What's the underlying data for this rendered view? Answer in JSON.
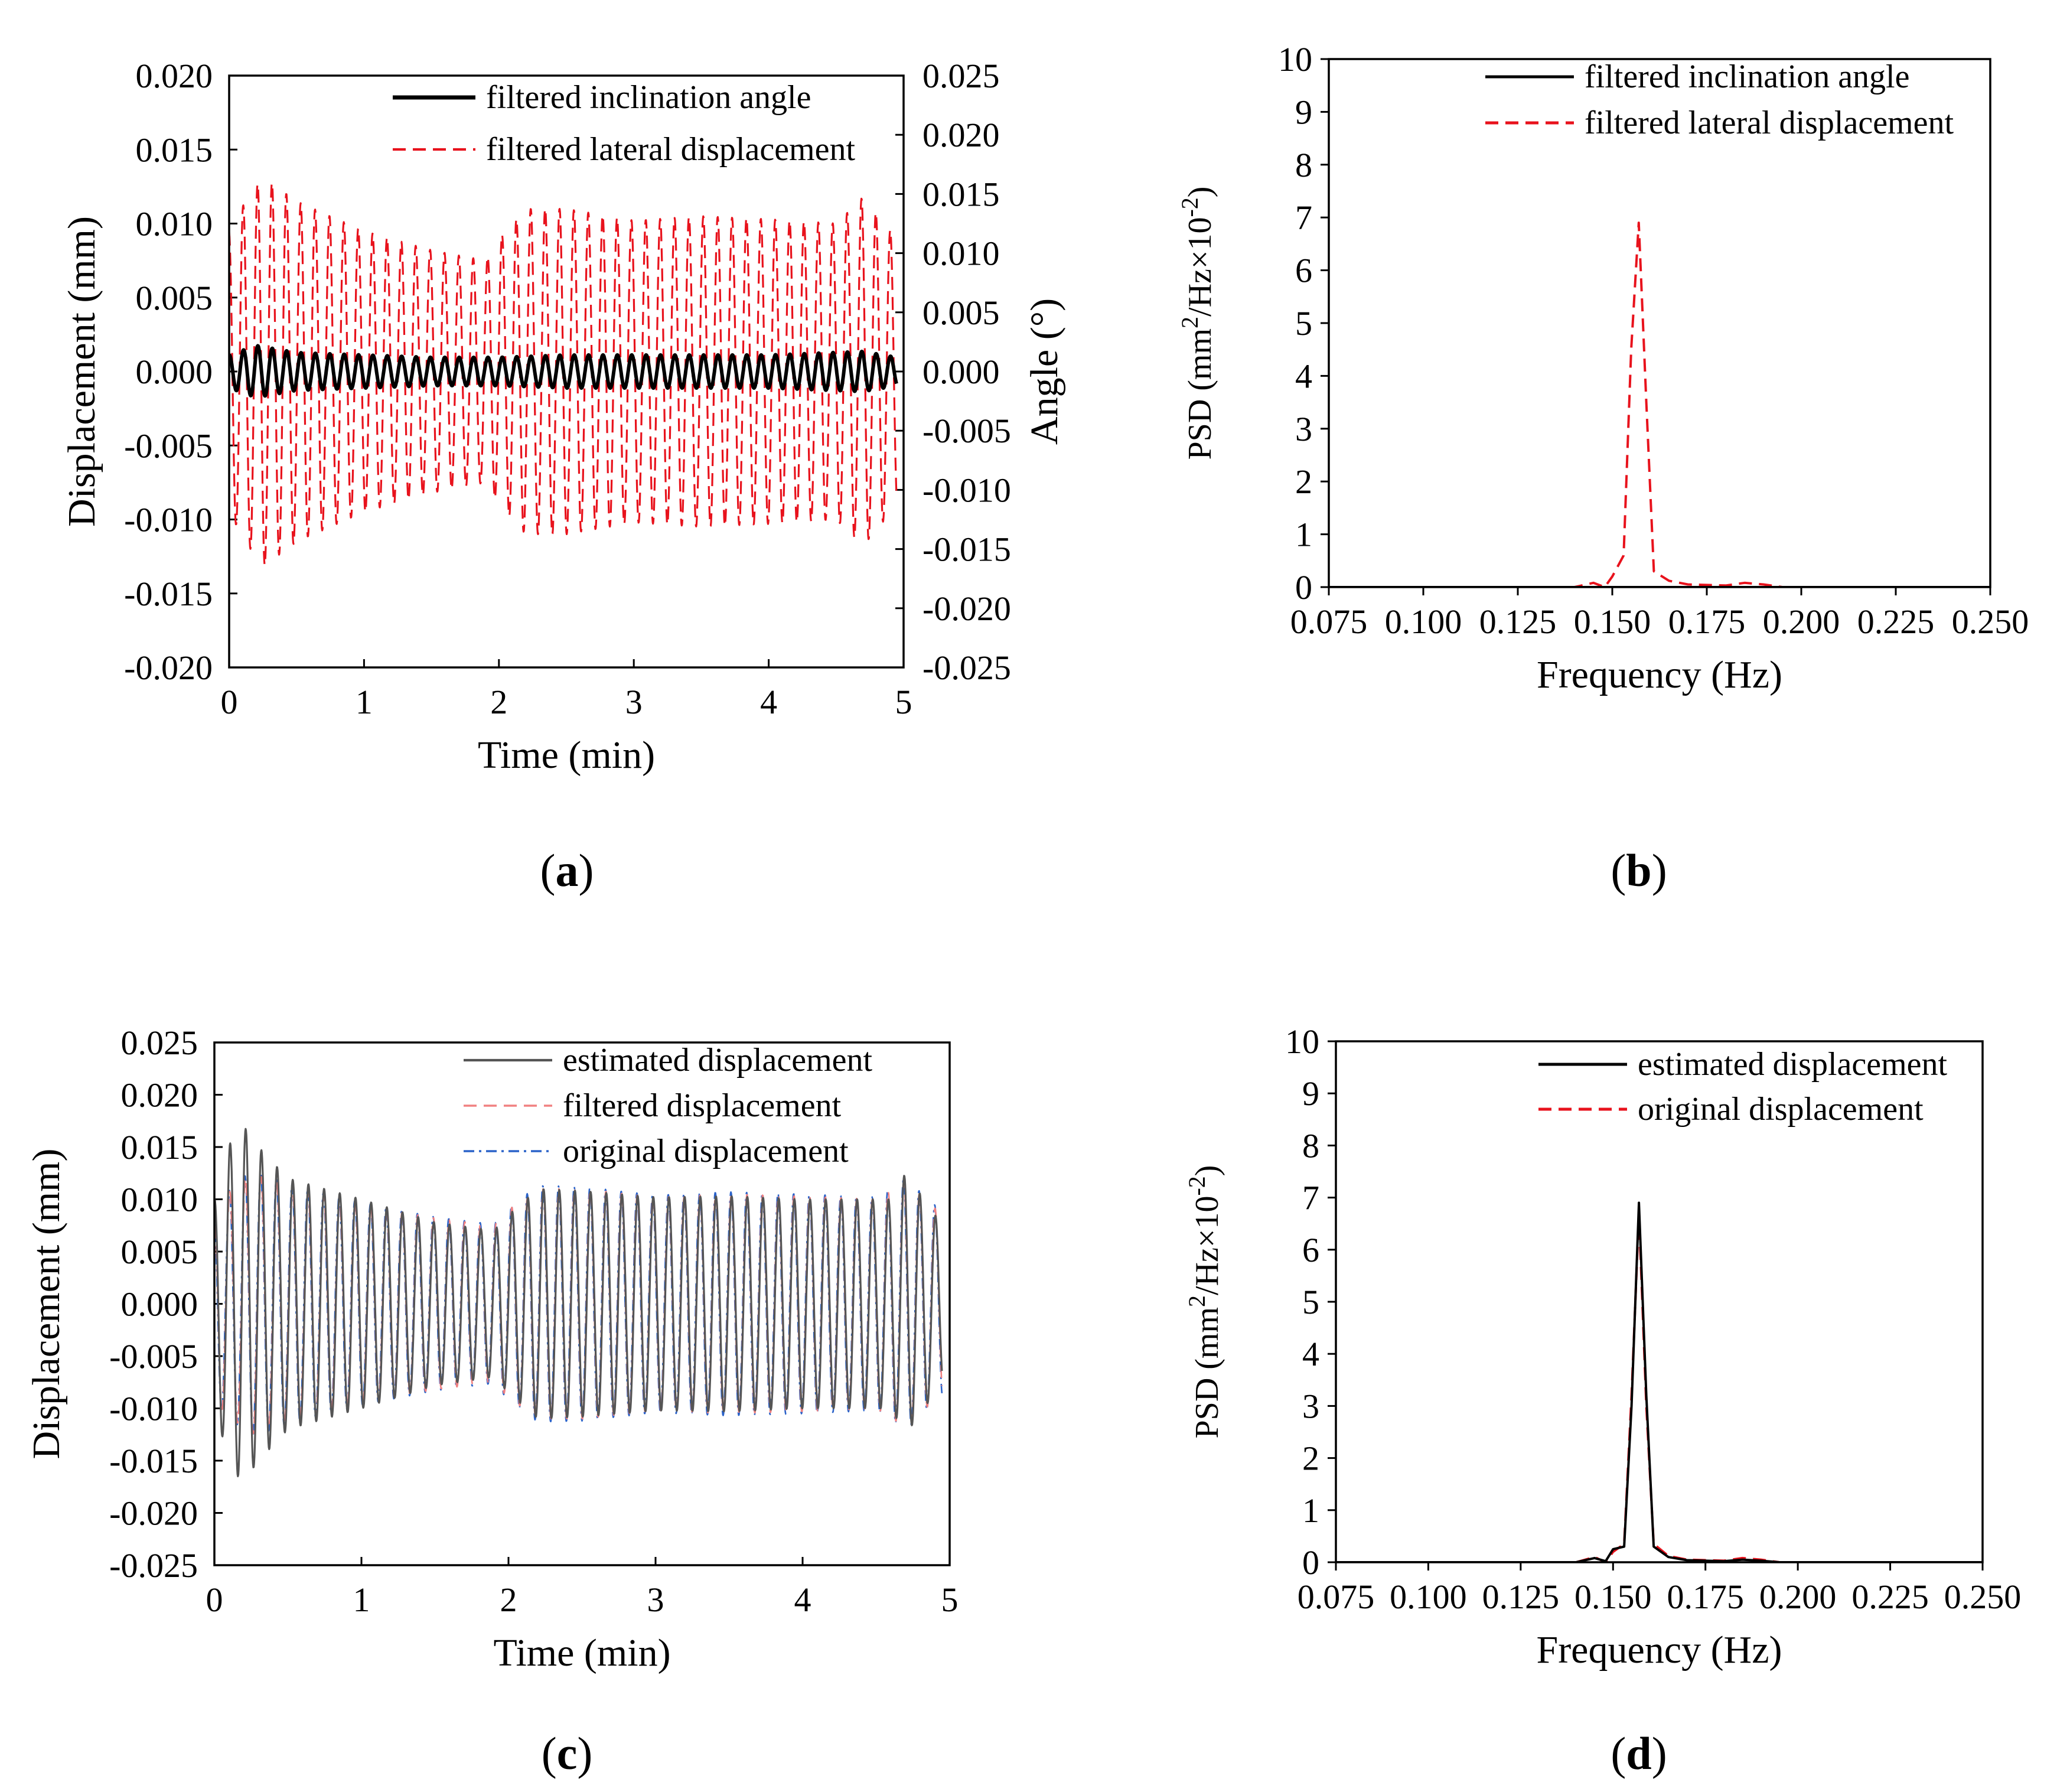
{
  "figure": {
    "panels": [
      {
        "open": "(",
        "letter": "a",
        "close": ")"
      },
      {
        "open": "(",
        "letter": "b",
        "close": ")"
      },
      {
        "open": "(",
        "letter": "c",
        "close": ")"
      },
      {
        "open": "(",
        "letter": "d",
        "close": ")"
      }
    ]
  },
  "chart_data": [
    {
      "panel": "a",
      "type": "line",
      "xlabel": "Time (min)",
      "ylabel": "Displacement (mm)",
      "y2label": "Angle (°)",
      "xlim": [
        0,
        5
      ],
      "ylim": [
        -0.02,
        0.02
      ],
      "y2lim": [
        -0.025,
        0.025
      ],
      "xticks": [
        "0",
        "1",
        "2",
        "3",
        "4",
        "5"
      ],
      "yticks": [
        "0.020",
        "0.015",
        "0.010",
        "0.005",
        "0.000",
        "-0.005",
        "-0.010",
        "-0.015",
        "-0.020"
      ],
      "y2ticks": [
        "0.025",
        "0.020",
        "0.015",
        "0.010",
        "0.005",
        "0.000",
        "-0.005",
        "-0.010",
        "-0.015",
        "-0.020",
        "-0.025"
      ],
      "oscillation_period_min": 0.1066,
      "series": [
        {
          "name": "filtered inclination angle",
          "axis": "right",
          "color": "#000000",
          "style": "solid",
          "amplitude_points": [
            [
              0,
              0.0014
            ],
            [
              0.2,
              0.0022
            ],
            [
              0.5,
              0.0016
            ],
            [
              1.5,
              0.0012
            ],
            [
              2.0,
              0.0012
            ],
            [
              2.5,
              0.0014
            ],
            [
              4.0,
              0.0014
            ],
            [
              4.7,
              0.0017
            ],
            [
              4.95,
              0.0012
            ]
          ]
        },
        {
          "name": "filtered lateral displacement",
          "axis": "left",
          "color": "#e8121c",
          "style": "dashed",
          "amplitude_points": [
            [
              0,
              0.0095
            ],
            [
              0.12,
              0.0115
            ],
            [
              0.25,
              0.0132
            ],
            [
              0.5,
              0.0115
            ],
            [
              1.0,
              0.0095
            ],
            [
              1.5,
              0.0082
            ],
            [
              1.9,
              0.0075
            ],
            [
              2.0,
              0.009
            ],
            [
              2.2,
              0.011
            ],
            [
              2.5,
              0.011
            ],
            [
              3.0,
              0.0102
            ],
            [
              3.5,
              0.0105
            ],
            [
              4.0,
              0.0103
            ],
            [
              4.5,
              0.01
            ],
            [
              4.7,
              0.0118
            ],
            [
              4.95,
              0.009
            ]
          ]
        }
      ]
    },
    {
      "panel": "b",
      "type": "line",
      "xlabel": "Frequency (Hz)",
      "ylabel": {
        "base": "PSD (mm",
        "exp1": "2",
        "mid": "/Hz×10",
        "exp2": "-2",
        "end": ")"
      },
      "xlim": [
        0.075,
        0.25
      ],
      "ylim": [
        0,
        10
      ],
      "xticks": [
        "0.075",
        "0.100",
        "0.125",
        "0.150",
        "0.175",
        "0.200",
        "0.225",
        "0.250"
      ],
      "yticks": [
        "10",
        "9",
        "8",
        "7",
        "6",
        "5",
        "4",
        "3",
        "2",
        "1",
        "0"
      ],
      "series": [
        {
          "name": "filtered inclination angle",
          "color": "#000000",
          "style": "solid",
          "x": [
            0.075,
            0.25
          ],
          "y": [
            0.0,
            0.0
          ]
        },
        {
          "name": "filtered lateral displacement",
          "color": "#e8121c",
          "style": "dashed",
          "x": [
            0.075,
            0.14,
            0.145,
            0.148,
            0.15,
            0.153,
            0.155,
            0.157,
            0.159,
            0.161,
            0.165,
            0.17,
            0.18,
            0.185,
            0.19,
            0.195,
            0.25
          ],
          "y": [
            0.0,
            0.0,
            0.08,
            0.0,
            0.2,
            0.6,
            4.5,
            6.9,
            3.5,
            0.3,
            0.12,
            0.05,
            0.03,
            0.08,
            0.05,
            0.0,
            0.0
          ]
        }
      ]
    },
    {
      "panel": "c",
      "type": "line",
      "xlabel": "Time (min)",
      "ylabel": "Displacement (mm)",
      "xlim": [
        0,
        5
      ],
      "ylim": [
        -0.025,
        0.025
      ],
      "xticks": [
        "0",
        "1",
        "2",
        "3",
        "4",
        "5"
      ],
      "yticks": [
        "0.025",
        "0.020",
        "0.015",
        "0.010",
        "0.005",
        "0.000",
        "-0.005",
        "-0.010",
        "-0.015",
        "-0.020",
        "-0.025"
      ],
      "oscillation_period_min": 0.1066,
      "series": [
        {
          "name": "estimated displacement",
          "color": "#555555",
          "style": "solid",
          "amplitude_points": [
            [
              0,
              0.01
            ],
            [
              0.12,
              0.016
            ],
            [
              0.2,
              0.017
            ],
            [
              0.3,
              0.015
            ],
            [
              0.5,
              0.012
            ],
            [
              1.0,
              0.01
            ],
            [
              1.5,
              0.0078
            ],
            [
              1.9,
              0.007
            ],
            [
              2.0,
              0.0085
            ],
            [
              2.2,
              0.011
            ],
            [
              2.5,
              0.0108
            ],
            [
              3.0,
              0.0102
            ],
            [
              3.5,
              0.0103
            ],
            [
              4.0,
              0.01
            ],
            [
              4.6,
              0.01
            ],
            [
              4.7,
              0.0125
            ],
            [
              4.95,
              0.0075
            ]
          ]
        },
        {
          "name": "filtered displacement",
          "color": "#f08080",
          "style": "dashed",
          "amplitude_points": [
            [
              0,
              0.0095
            ],
            [
              0.25,
              0.0125
            ],
            [
              0.5,
              0.0112
            ],
            [
              1.0,
              0.0095
            ],
            [
              1.5,
              0.0082
            ],
            [
              1.9,
              0.0075
            ],
            [
              2.0,
              0.009
            ],
            [
              2.2,
              0.011
            ],
            [
              2.5,
              0.011
            ],
            [
              3.0,
              0.0102
            ],
            [
              3.5,
              0.0105
            ],
            [
              4.0,
              0.0103
            ],
            [
              4.5,
              0.01
            ],
            [
              4.7,
              0.0118
            ],
            [
              4.95,
              0.0085
            ]
          ]
        },
        {
          "name": "original displacement",
          "color": "#2a62c9",
          "style": "dashdot",
          "amplitude_points": [
            [
              0,
              0.0095
            ],
            [
              0.25,
              0.0128
            ],
            [
              0.5,
              0.0115
            ],
            [
              1.0,
              0.0097
            ],
            [
              1.5,
              0.0083
            ],
            [
              1.9,
              0.0076
            ],
            [
              2.0,
              0.0092
            ],
            [
              2.2,
              0.0113
            ],
            [
              2.5,
              0.0112
            ],
            [
              3.0,
              0.0104
            ],
            [
              3.5,
              0.0107
            ],
            [
              4.0,
              0.0105
            ],
            [
              4.5,
              0.0102
            ],
            [
              4.7,
              0.012
            ],
            [
              4.95,
              0.0088
            ]
          ]
        }
      ]
    },
    {
      "panel": "d",
      "type": "line",
      "xlabel": "Frequency (Hz)",
      "ylabel": {
        "base": "PSD (mm",
        "exp1": "2",
        "mid": "/Hz×10",
        "exp2": "-2",
        "end": ")"
      },
      "xlim": [
        0.075,
        0.25
      ],
      "ylim": [
        0,
        10
      ],
      "xticks": [
        "0.075",
        "0.100",
        "0.125",
        "0.150",
        "0.175",
        "0.200",
        "0.225",
        "0.250"
      ],
      "yticks": [
        "10",
        "9",
        "8",
        "7",
        "6",
        "5",
        "4",
        "3",
        "2",
        "1",
        "0"
      ],
      "series": [
        {
          "name": "estimated displacement",
          "color": "#000000",
          "style": "solid",
          "x": [
            0.075,
            0.14,
            0.145,
            0.148,
            0.15,
            0.153,
            0.155,
            0.157,
            0.159,
            0.161,
            0.165,
            0.17,
            0.18,
            0.185,
            0.19,
            0.195,
            0.25
          ],
          "y": [
            0.0,
            0.0,
            0.08,
            0.02,
            0.25,
            0.3,
            3.0,
            6.9,
            3.2,
            0.3,
            0.1,
            0.04,
            0.02,
            0.05,
            0.03,
            0.0,
            0.0
          ]
        },
        {
          "name": "original displacement",
          "color": "#e8121c",
          "style": "dashed",
          "x": [
            0.075,
            0.14,
            0.145,
            0.148,
            0.15,
            0.153,
            0.155,
            0.157,
            0.159,
            0.161,
            0.165,
            0.17,
            0.18,
            0.185,
            0.19,
            0.195,
            0.25
          ],
          "y": [
            0.0,
            0.0,
            0.1,
            0.0,
            0.2,
            0.35,
            3.2,
            6.7,
            3.0,
            0.35,
            0.12,
            0.05,
            0.03,
            0.08,
            0.05,
            0.0,
            0.0
          ]
        }
      ]
    }
  ]
}
